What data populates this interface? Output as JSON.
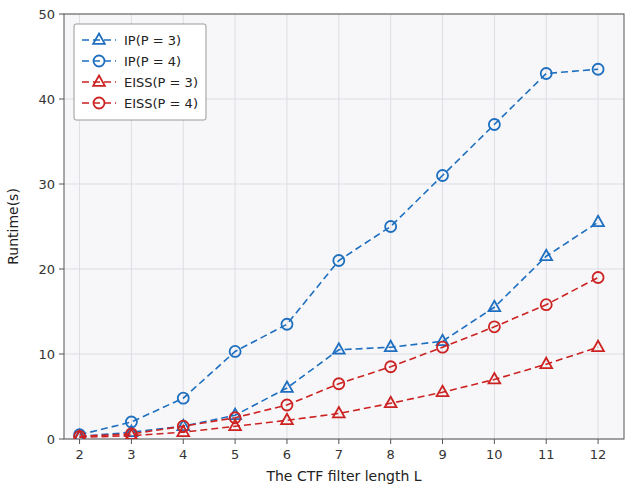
{
  "chart_data": {
    "type": "line",
    "x_label": "The CTF filter length L",
    "y_label": "Runtime(s)",
    "x": [
      2,
      3,
      4,
      5,
      6,
      7,
      8,
      9,
      10,
      11,
      12
    ],
    "series": [
      {
        "name": "IP(P = 3)",
        "color": "#1E6FBF",
        "marker": "triangle",
        "line_style": "dashed",
        "values": [
          0.3,
          0.8,
          1.5,
          2.8,
          6.0,
          10.5,
          10.8,
          11.5,
          15.5,
          21.5,
          25.5
        ]
      },
      {
        "name": "IP(P = 4)",
        "color": "#1E6FBF",
        "marker": "circle",
        "line_style": "dashed",
        "values": [
          0.5,
          2.0,
          4.8,
          10.3,
          13.5,
          21.0,
          25.0,
          31.0,
          37.0,
          43.0,
          43.5
        ]
      },
      {
        "name": "EISS(P = 3)",
        "color": "#CC2222",
        "marker": "triangle",
        "line_style": "dashed",
        "values": [
          0.2,
          0.4,
          0.8,
          1.5,
          2.2,
          3.0,
          4.2,
          5.5,
          7.0,
          8.8,
          10.8
        ]
      },
      {
        "name": "EISS(P = 4)",
        "color": "#CC2222",
        "marker": "circle",
        "line_style": "dashed",
        "values": [
          0.3,
          0.6,
          1.5,
          2.5,
          4.0,
          6.5,
          8.5,
          10.8,
          13.2,
          15.8,
          19.0
        ]
      }
    ],
    "xlim": [
      1.7,
      12.5
    ],
    "ylim": [
      0,
      50
    ],
    "xticks": [
      2,
      3,
      4,
      5,
      6,
      7,
      8,
      9,
      10,
      11,
      12
    ],
    "yticks": [
      0,
      10,
      20,
      30,
      40,
      50
    ],
    "grid": true,
    "legend": "upper left"
  }
}
